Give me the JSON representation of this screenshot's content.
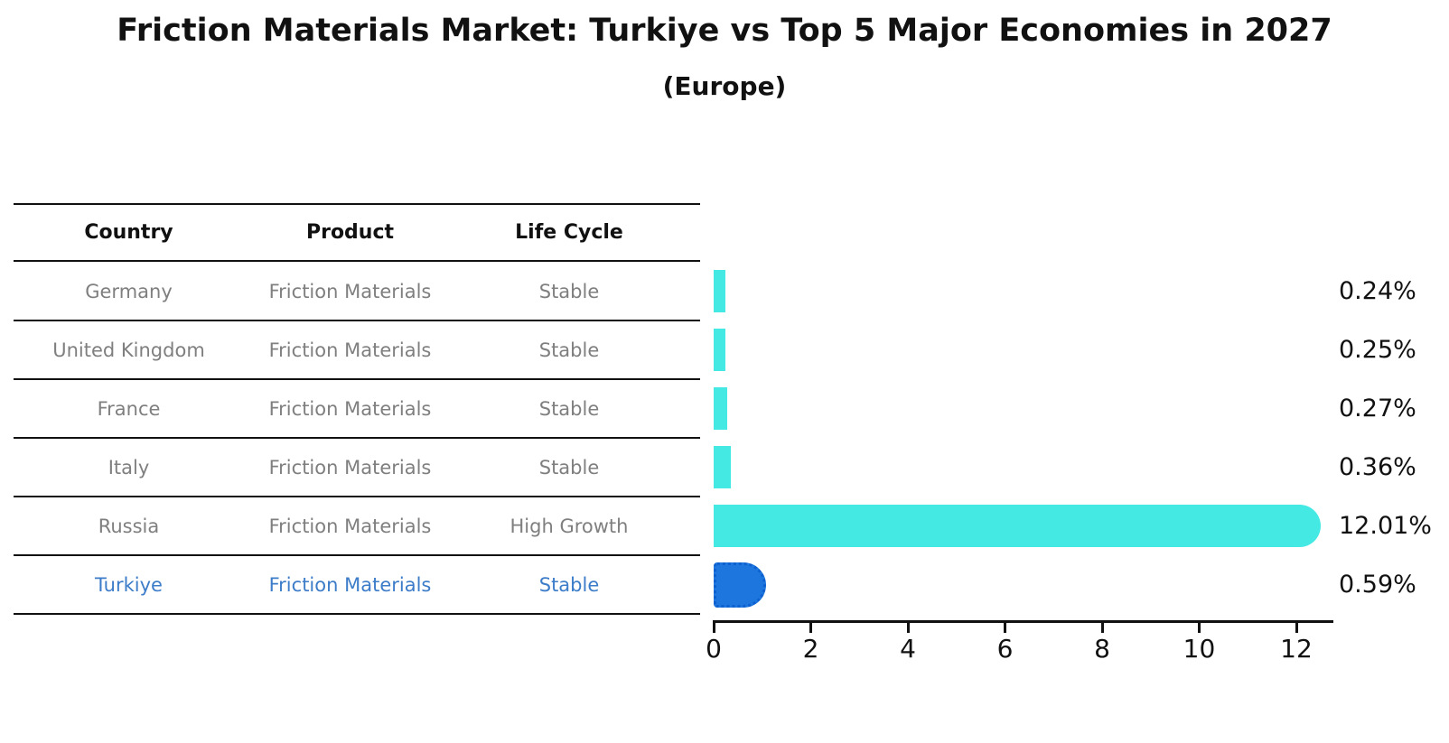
{
  "title": "Friction Materials Market: Turkiye vs Top 5 Major Economies in 2027",
  "subtitle": "(Europe)",
  "table": {
    "headers": [
      "Country",
      "Product",
      "Life Cycle"
    ]
  },
  "colors": {
    "bar_default": "#45e9e3",
    "bar_highlight": "#1c76dd",
    "bar_highlight_border": "#0e5fd0",
    "highlight_text": "#3c7cc8",
    "row_text": "#7f7f7f",
    "line": "#111111"
  },
  "chart_data": {
    "type": "bar",
    "orientation": "horizontal",
    "title": "Friction Materials Market: Turkiye vs Top 5 Major Economies in 2027",
    "subtitle": "(Europe)",
    "xlabel": "",
    "ylabel": "",
    "xlim": [
      0,
      12.72
    ],
    "xticks": [
      0,
      2,
      4,
      6,
      8,
      10,
      12
    ],
    "grid": false,
    "categories": [
      "Germany",
      "United Kingdom",
      "France",
      "Italy",
      "Russia",
      "Turkiye"
    ],
    "values": [
      0.24,
      0.25,
      0.27,
      0.36,
      12.01,
      0.59
    ],
    "rows": [
      {
        "country": "Germany",
        "product": "Friction Materials",
        "life_cycle": "Stable",
        "value": 0.24,
        "value_label": "0.24%",
        "highlight": false,
        "cap": false
      },
      {
        "country": "United Kingdom",
        "product": "Friction Materials",
        "life_cycle": "Stable",
        "value": 0.25,
        "value_label": "0.25%",
        "highlight": false,
        "cap": false
      },
      {
        "country": "France",
        "product": "Friction Materials",
        "life_cycle": "Stable",
        "value": 0.27,
        "value_label": "0.27%",
        "highlight": false,
        "cap": false
      },
      {
        "country": "Italy",
        "product": "Friction Materials",
        "life_cycle": "Stable",
        "value": 0.36,
        "value_label": "0.36%",
        "highlight": false,
        "cap": false
      },
      {
        "country": "Russia",
        "product": "Friction Materials",
        "life_cycle": "High Growth",
        "value": 12.01,
        "value_label": "12.01%",
        "highlight": false,
        "cap": true
      },
      {
        "country": "Turkiye",
        "product": "Friction Materials",
        "life_cycle": "Stable",
        "value": 0.59,
        "value_label": "0.59%",
        "highlight": true,
        "cap": true
      }
    ]
  }
}
